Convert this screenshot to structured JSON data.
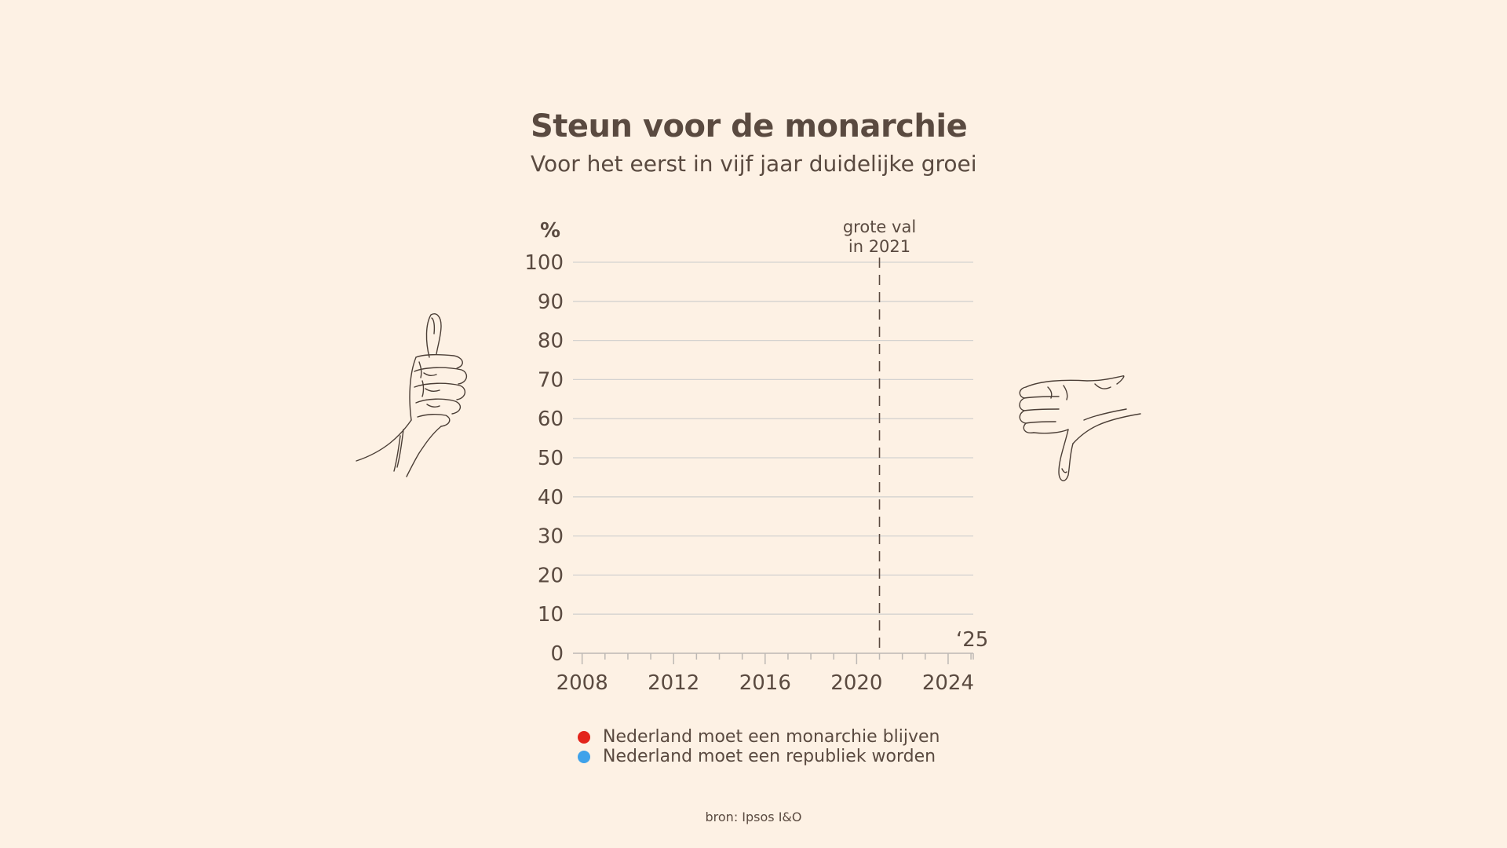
{
  "chart_data": {
    "type": "line",
    "title": "Steun voor de monarchie",
    "subtitle": "Voor het eerst in vijf jaar duidelijke groei",
    "ylabel": "%",
    "ylim": [
      0,
      100
    ],
    "yticks": [
      0,
      10,
      20,
      30,
      40,
      50,
      60,
      70,
      80,
      90,
      100
    ],
    "xlim": [
      2007.6,
      2025.1
    ],
    "xticks": [
      2008,
      2012,
      2016,
      2020,
      2024
    ],
    "end_label": "‘25",
    "grid": true,
    "annotation": {
      "x": 2021,
      "line1": "grote val",
      "line2": "in 2021"
    },
    "series": [
      {
        "name": "Nederland moet een monarchie blijven",
        "color": "#e3241b",
        "values": []
      },
      {
        "name": "Nederland moet een republiek worden",
        "color": "#3fa2ea",
        "values": []
      }
    ],
    "legend_position": "bottom"
  },
  "source": "bron: Ipsos I&O",
  "icons": {
    "left": "thumbs-up-icon",
    "right": "thumbs-down-icon"
  }
}
